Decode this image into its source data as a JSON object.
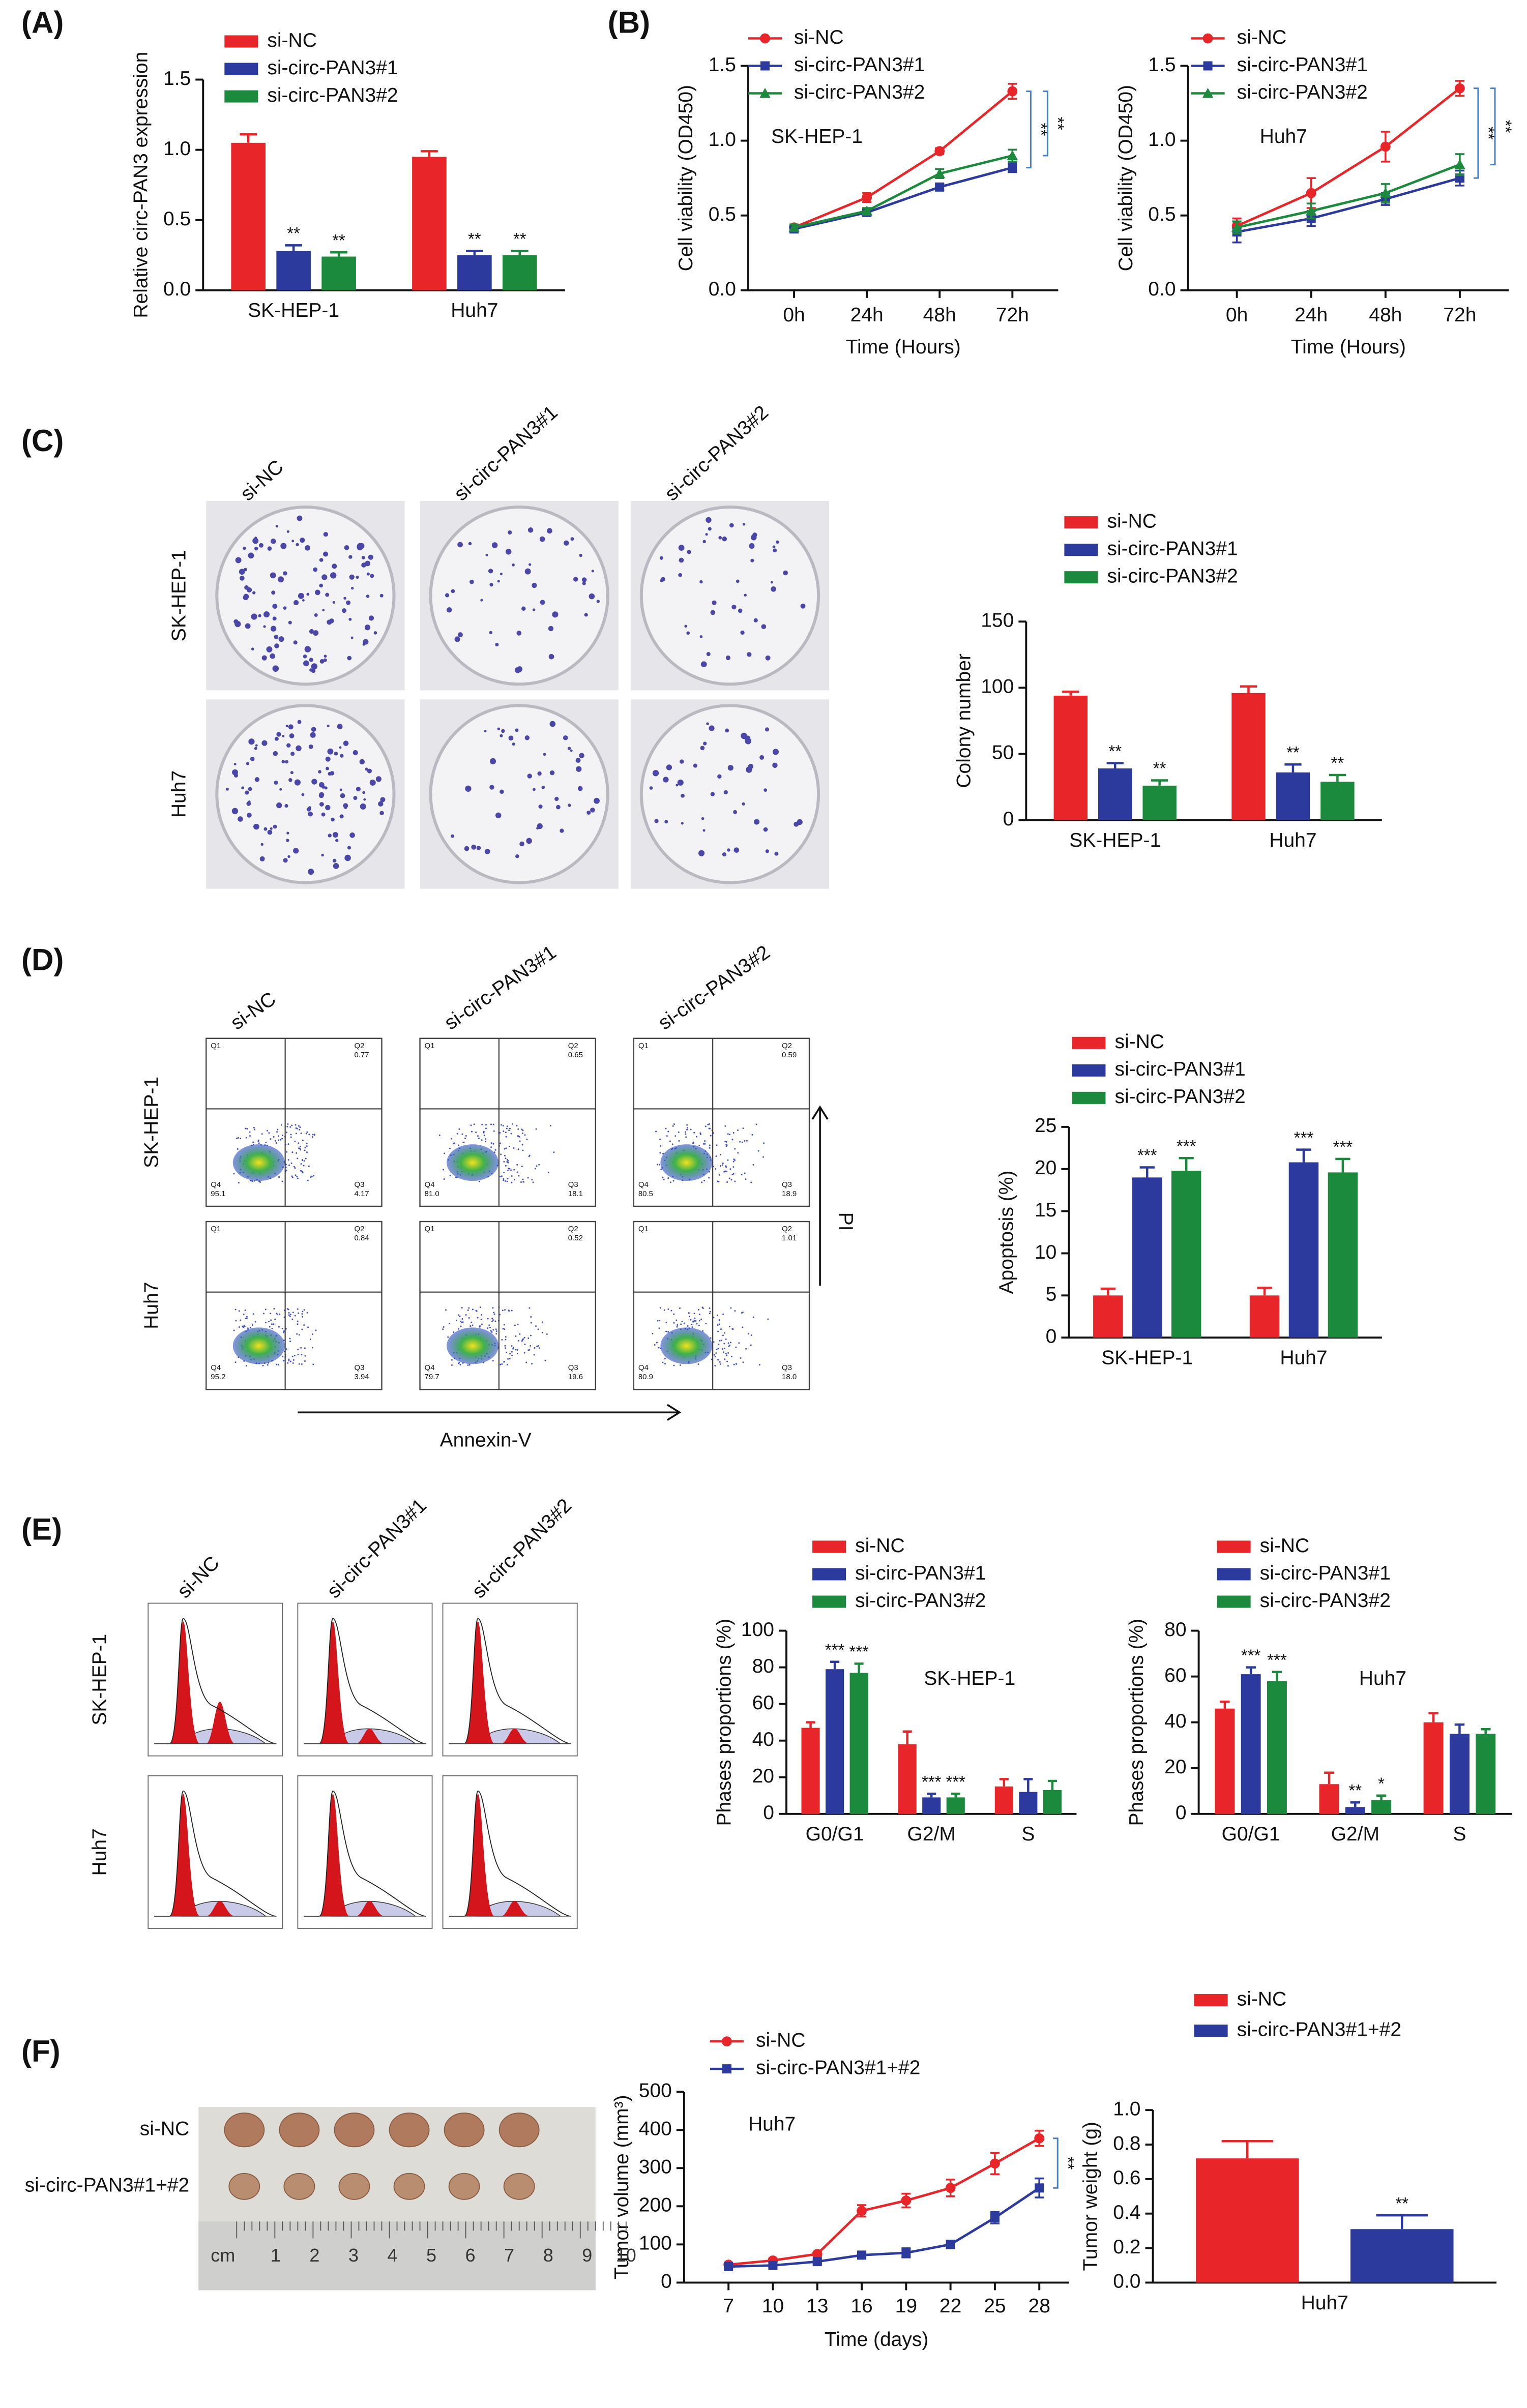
{
  "chart_data": [
    {
      "type": "bar",
      "y_label": "Relative circ-PAN3 expression",
      "categories": [
        "SK-HEP-1",
        "Huh7"
      ],
      "series": [
        {
          "name": "si-NC",
          "color": "#e8262a",
          "values": [
            1.05,
            0.95
          ],
          "errors": [
            0.06,
            0.04
          ]
        },
        {
          "name": "si-circ-PAN3#1",
          "color": "#2b3a9c",
          "values": [
            0.28,
            0.25
          ],
          "errors": [
            0.04,
            0.03
          ],
          "significance": [
            "**",
            "**"
          ]
        },
        {
          "name": "si-circ-PAN3#2",
          "color": "#1c8a3c",
          "values": [
            0.24,
            0.25
          ],
          "errors": [
            0.03,
            0.03
          ],
          "significance": [
            "**",
            "**"
          ]
        }
      ],
      "ylim": [
        0,
        1.5
      ],
      "yticks": [
        {
          "value": 0,
          "label": "0.0"
        },
        {
          "value": 0.5,
          "label": "0.5"
        },
        {
          "value": 1,
          "label": "1.0"
        },
        {
          "value": 1.5,
          "label": "1.5"
        }
      ]
    },
    {
      "type": "line",
      "label": "SK-HEP-1",
      "x_label": "Time (Hours)",
      "y_label": "Cell viability (OD450)",
      "categories": [
        "0h",
        "24h",
        "48h",
        "72h"
      ],
      "series": [
        {
          "name": "si-NC",
          "color": "#e8262a",
          "marker": "circle",
          "values": [
            0.42,
            0.62,
            0.93,
            1.33
          ],
          "errors": [
            0.02,
            0.03,
            0.02,
            0.05
          ]
        },
        {
          "name": "si-circ-PAN3#1",
          "color": "#2b3a9c",
          "marker": "square",
          "values": [
            0.41,
            0.52,
            0.69,
            0.82
          ],
          "errors": [
            0.02,
            0.02,
            0.02,
            0.03
          ]
        },
        {
          "name": "si-circ-PAN3#2",
          "color": "#1c8a3c",
          "marker": "triangle",
          "values": [
            0.42,
            0.53,
            0.78,
            0.9
          ],
          "errors": [
            0.02,
            0.02,
            0.03,
            0.04
          ]
        }
      ],
      "brackets": [
        "**",
        "**"
      ],
      "ylim": [
        0,
        1.5
      ],
      "yticks": [
        {
          "value": 0,
          "label": "0.0"
        },
        {
          "value": 0.5,
          "label": "0.5"
        },
        {
          "value": 1,
          "label": "1.0"
        },
        {
          "value": 1.5,
          "label": "1.5"
        }
      ]
    },
    {
      "type": "line",
      "label": "Huh7",
      "x_label": "Time (Hours)",
      "y_label": "Cell viability (OD450)",
      "categories": [
        "0h",
        "24h",
        "48h",
        "72h"
      ],
      "series": [
        {
          "name": "si-NC",
          "color": "#e8262a",
          "marker": "circle",
          "values": [
            0.43,
            0.65,
            0.96,
            1.35
          ],
          "errors": [
            0.05,
            0.1,
            0.1,
            0.05
          ]
        },
        {
          "name": "si-circ-PAN3#1",
          "color": "#2b3a9c",
          "marker": "square",
          "values": [
            0.39,
            0.48,
            0.61,
            0.75
          ],
          "errors": [
            0.07,
            0.05,
            0.04,
            0.05
          ]
        },
        {
          "name": "si-circ-PAN3#2",
          "color": "#1c8a3c",
          "marker": "triangle",
          "values": [
            0.42,
            0.53,
            0.65,
            0.84
          ],
          "errors": [
            0.04,
            0.05,
            0.06,
            0.07
          ]
        }
      ],
      "brackets": [
        "**",
        "**"
      ],
      "ylim": [
        0,
        1.5
      ],
      "yticks": [
        {
          "value": 0,
          "label": "0.0"
        },
        {
          "value": 0.5,
          "label": "0.5"
        },
        {
          "value": 1,
          "label": "1.0"
        },
        {
          "value": 1.5,
          "label": "1.5"
        }
      ]
    },
    {
      "type": "bar",
      "y_label": "Colony number",
      "categories": [
        "SK-HEP-1",
        "Huh7"
      ],
      "series": [
        {
          "name": "si-NC",
          "color": "#e8262a",
          "values": [
            94,
            96
          ],
          "errors": [
            3,
            5
          ]
        },
        {
          "name": "si-circ-PAN3#1",
          "color": "#2b3a9c",
          "values": [
            39,
            36
          ],
          "errors": [
            4,
            6
          ],
          "significance": [
            "**",
            "**"
          ]
        },
        {
          "name": "si-circ-PAN3#2",
          "color": "#1c8a3c",
          "values": [
            26,
            29
          ],
          "errors": [
            4,
            5
          ],
          "significance": [
            "**",
            "**"
          ]
        }
      ],
      "ylim": [
        0,
        150
      ],
      "yticks": [
        0,
        50,
        100,
        150
      ]
    },
    {
      "type": "bar",
      "y_label": "Apoptosis (%)",
      "categories": [
        "SK-HEP-1",
        "Huh7"
      ],
      "series": [
        {
          "name": "si-NC",
          "color": "#e8262a",
          "values": [
            5,
            5
          ],
          "errors": [
            0.8,
            0.9
          ]
        },
        {
          "name": "si-circ-PAN3#1",
          "color": "#2b3a9c",
          "values": [
            19,
            20.8
          ],
          "errors": [
            1.2,
            1.5
          ],
          "significance": [
            "***",
            "***"
          ]
        },
        {
          "name": "si-circ-PAN3#2",
          "color": "#1c8a3c",
          "values": [
            19.8,
            19.6
          ],
          "errors": [
            1.5,
            1.6
          ],
          "significance": [
            "***",
            "***"
          ]
        }
      ],
      "ylim": [
        0,
        25
      ],
      "yticks": [
        0,
        5,
        10,
        15,
        20,
        25
      ]
    },
    {
      "type": "bar",
      "label": "SK-HEP-1",
      "y_label": "Phases proportions (%)",
      "categories": [
        "G0/G1",
        "G2/M",
        "S"
      ],
      "series": [
        {
          "name": "si-NC",
          "color": "#e8262a",
          "values": [
            47,
            38,
            15
          ],
          "errors": [
            3,
            7,
            4
          ]
        },
        {
          "name": "si-circ-PAN3#1",
          "color": "#2b3a9c",
          "values": [
            79,
            9,
            12
          ],
          "errors": [
            4,
            2,
            7
          ],
          "significance": [
            "***",
            "***",
            null
          ]
        },
        {
          "name": "si-circ-PAN3#2",
          "color": "#1c8a3c",
          "values": [
            77,
            9,
            13
          ],
          "errors": [
            5,
            2,
            5
          ],
          "significance": [
            "***",
            "***",
            null
          ]
        }
      ],
      "ylim": [
        0,
        100
      ],
      "yticks": [
        0,
        20,
        40,
        60,
        80,
        100
      ]
    },
    {
      "type": "bar",
      "label": "Huh7",
      "y_label": "Phases proportions (%)",
      "categories": [
        "G0/G1",
        "G2/M",
        "S"
      ],
      "series": [
        {
          "name": "si-NC",
          "color": "#e8262a",
          "values": [
            46,
            13,
            40
          ],
          "errors": [
            3,
            5,
            4
          ]
        },
        {
          "name": "si-circ-PAN3#1",
          "color": "#2b3a9c",
          "values": [
            61,
            3,
            35
          ],
          "errors": [
            3,
            2,
            4
          ],
          "significance": [
            "***",
            "**",
            null
          ]
        },
        {
          "name": "si-circ-PAN3#2",
          "color": "#1c8a3c",
          "values": [
            58,
            6,
            35
          ],
          "errors": [
            4,
            2,
            2
          ],
          "significance": [
            "***",
            "*",
            null
          ]
        }
      ],
      "ylim": [
        0,
        80
      ],
      "yticks": [
        0,
        20,
        40,
        60,
        80
      ]
    },
    {
      "type": "line",
      "label": "Huh7",
      "x_label": "Time (days)",
      "y_label": "Tumor volume (mm³)",
      "x": [
        7,
        10,
        13,
        16,
        19,
        22,
        25,
        28
      ],
      "series": [
        {
          "name": "si-NC",
          "color": "#e8262a",
          "marker": "circle",
          "values": [
            47,
            58,
            75,
            188,
            215,
            248,
            312,
            378
          ],
          "errors": [
            5,
            5,
            6,
            15,
            18,
            22,
            28,
            20
          ]
        },
        {
          "name": "si-circ-PAN3#1+#2",
          "color": "#2b3a9c",
          "marker": "square",
          "values": [
            42,
            45,
            55,
            72,
            78,
            100,
            170,
            248
          ],
          "errors": [
            4,
            4,
            5,
            6,
            12,
            10,
            15,
            25
          ]
        }
      ],
      "brackets": [
        "**"
      ],
      "xlim": [
        4,
        30
      ],
      "xticks": [
        7,
        10,
        13,
        16,
        19,
        22,
        25,
        28
      ],
      "ylim": [
        0,
        500
      ],
      "yticks": [
        0,
        100,
        200,
        300,
        400,
        500
      ]
    },
    {
      "type": "bar",
      "y_label": "Tumor weight (g)",
      "categories": [
        "Huh7"
      ],
      "series": [
        {
          "name": "si-NC",
          "color": "#e8262a",
          "values": [
            0.72
          ],
          "errors": [
            0.1
          ]
        },
        {
          "name": "si-circ-PAN3#1+#2",
          "color": "#2b3a9c",
          "values": [
            0.31
          ],
          "errors": [
            0.08
          ],
          "significance": [
            "**"
          ]
        }
      ],
      "ylim": [
        0,
        1
      ],
      "yticks": [
        {
          "value": 0,
          "label": "0.0"
        },
        {
          "value": 0.2,
          "label": "0.2"
        },
        {
          "value": 0.4,
          "label": "0.4"
        },
        {
          "value": 0.6,
          "label": "0.6"
        },
        {
          "value": 0.8,
          "label": "0.8"
        },
        {
          "value": 1,
          "label": "1.0"
        }
      ]
    }
  ],
  "figure": {
    "panel_labels": [
      "(A)",
      "(B)",
      "(C)",
      "(D)",
      "(E)",
      "(F)"
    ],
    "colony": {
      "columns": [
        "si-NC",
        "si-circ-PAN3#1",
        "si-circ-PAN3#2"
      ],
      "rows": [
        "SK-HEP-1",
        "Huh7"
      ]
    },
    "flow": {
      "columns": [
        "si-NC",
        "si-circ-PAN3#1",
        "si-circ-PAN3#2"
      ],
      "rows": [
        "SK-HEP-1",
        "Huh7"
      ],
      "quadrants": [
        "Q1",
        "Q2",
        "Q3",
        "Q4"
      ],
      "values": [
        [
          [
            "0.77",
            "4.17",
            "95.1"
          ],
          [
            "0.65",
            "18.1",
            "81.0"
          ],
          [
            "0.59",
            "18.9",
            "80.5"
          ]
        ],
        [
          [
            "0.84",
            "3.94",
            "95.2"
          ],
          [
            "0.52",
            "19.6",
            "79.7"
          ],
          [
            "1.01",
            "18.0",
            "80.9"
          ]
        ]
      ],
      "x_label": "Annexin-V",
      "y_label": "PI"
    },
    "cycle": {
      "columns": [
        "si-NC",
        "si-circ-PAN3#1",
        "si-circ-PAN3#2"
      ],
      "rows": [
        "SK-HEP-1",
        "Huh7"
      ]
    },
    "tumor": {
      "rows": [
        "si-NC",
        "si-circ-PAN3#1+#2"
      ],
      "ruler": [
        "cm",
        "1",
        "2",
        "3",
        "4",
        "5",
        "6",
        "7",
        "8",
        "9",
        "10"
      ]
    }
  }
}
